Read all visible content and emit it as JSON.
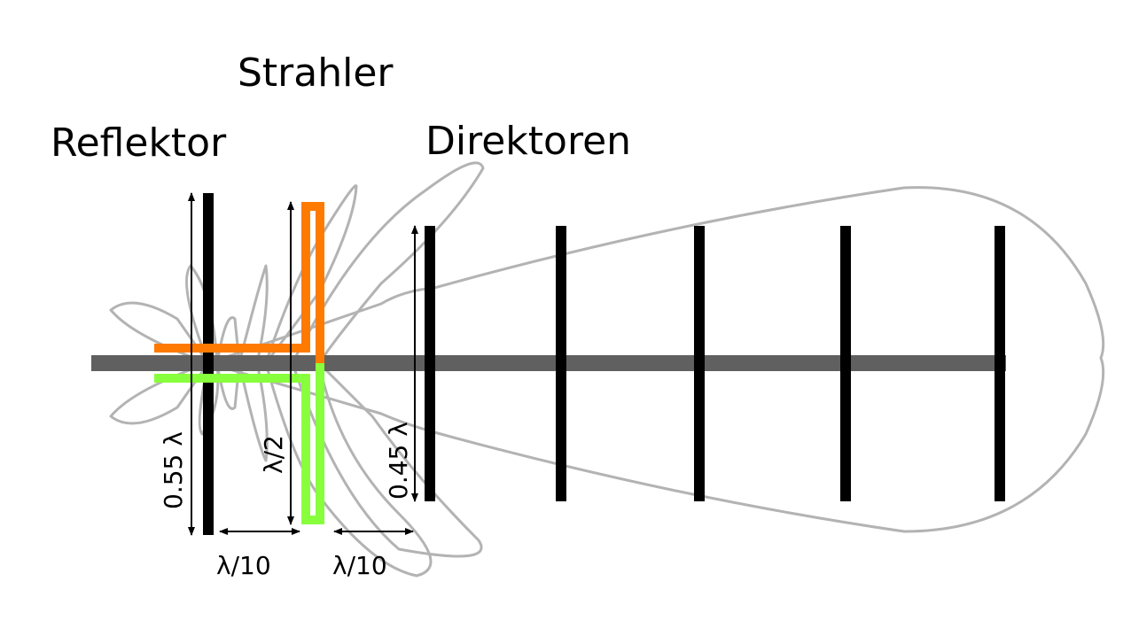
{
  "labels": {
    "strahler": "Strahler",
    "reflektor": "Reflektor",
    "direktoren": "Direktoren",
    "reflector_length": "0.55 λ",
    "driven_length": "λ/2",
    "director_length": "0.45 λ",
    "spacing_reflector_driven": "λ/10",
    "spacing_driven_director": "λ/10"
  },
  "colors": {
    "boom": "#606060",
    "elements": "#000000",
    "pattern": "#b3b3b3",
    "feed_upper": "#ff7a00",
    "feed_lower": "#88ff3c"
  },
  "elements": {
    "director_count": 5
  }
}
